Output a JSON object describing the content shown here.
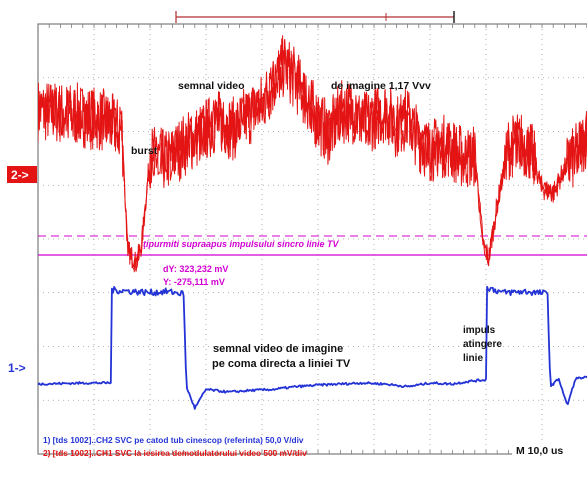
{
  "colors": {
    "ch1": "#e41414",
    "ch2": "#2433d6",
    "cursor": "#d200d2",
    "grid": "#9a9a9a",
    "frame": "#7c7c7c",
    "background": "#ffffff"
  },
  "chart_data": {
    "type": "line",
    "grid": true,
    "grid_divisions": {
      "x": 10,
      "y": 8
    },
    "channel_markers": {
      "ch1": "2->",
      "ch2": "1->"
    },
    "series": [
      {
        "name": "CH1",
        "x": [
          0,
          0.8,
          1.2,
          1.5,
          1.6,
          1.75,
          1.85,
          2.0,
          2.3,
          2.6,
          2.9,
          3.2,
          3.5,
          3.8,
          4.0,
          4.2,
          4.4,
          4.6,
          4.8,
          5.0,
          5.2,
          5.4,
          5.6,
          5.8,
          6.0,
          6.2,
          6.4,
          6.6,
          6.8,
          7.0,
          7.3,
          7.6,
          7.8,
          7.95,
          8.05,
          8.2,
          8.4,
          8.6,
          8.8,
          9.0,
          9.2,
          9.4,
          9.6,
          9.8,
          10.0
        ],
        "y": [
          1.95,
          1.85,
          1.75,
          1.55,
          -0.65,
          -0.9,
          -0.55,
          1.1,
          1.0,
          1.3,
          1.5,
          1.75,
          1.6,
          1.9,
          2.05,
          2.45,
          2.8,
          2.5,
          2.15,
          1.75,
          1.5,
          1.9,
          1.95,
          1.7,
          1.8,
          1.95,
          1.65,
          1.8,
          1.4,
          1.2,
          1.3,
          1.05,
          1.1,
          -0.55,
          -0.8,
          0.2,
          1.25,
          1.35,
          1.2,
          0.5,
          0.4,
          0.85,
          1.1,
          1.5,
          1.4
        ]
      },
      {
        "name": "CH2",
        "x": [
          0,
          0.9,
          1.3,
          1.32,
          2.0,
          2.3,
          2.6,
          2.65,
          2.8,
          3.0,
          3.4,
          3.8,
          4.2,
          4.6,
          5.0,
          5.4,
          5.8,
          6.2,
          6.6,
          7.0,
          7.4,
          7.7,
          8.0,
          8.02,
          8.3,
          8.7,
          9.1,
          9.15,
          9.3,
          9.45,
          9.6,
          10.0
        ],
        "y": [
          0.0,
          0.02,
          0.02,
          1.75,
          1.7,
          1.72,
          1.68,
          -0.05,
          -0.45,
          -0.1,
          -0.15,
          -0.12,
          -0.1,
          -0.05,
          -0.02,
          0.0,
          0.02,
          0.0,
          -0.05,
          0.02,
          0.0,
          0.05,
          0.08,
          1.8,
          1.7,
          1.72,
          1.68,
          -0.05,
          0.1,
          -0.4,
          0.1,
          0.15
        ]
      }
    ],
    "cursor_line": {
      "label": "ţipurmiti supraapus impulsului sincro linie TV"
    },
    "cursor_readout": [
      "dY: 323,232 mV",
      "Y: -275,111 mV"
    ],
    "annotations": [
      {
        "text": "semnal video",
        "series": "CH1"
      },
      {
        "text": "de imagine 1,17 Vvv",
        "series": "CH1"
      },
      {
        "text": "burst",
        "series": "CH1"
      },
      {
        "text": "semnal video de imagine",
        "series": "CH2"
      },
      {
        "text": "pe coma directa a liniei TV",
        "series": "CH2"
      },
      {
        "text": "impuls",
        "series": "CH2"
      },
      {
        "text": "atingere",
        "series": "CH2"
      },
      {
        "text": "linie",
        "series": "CH2"
      }
    ],
    "legend": [
      {
        "text": "1) [tds 1002]..CH2 SVC pe catod tub cinescop (referinta) 50,0 V/div",
        "series": "CH2"
      },
      {
        "text": "2) [tds 1002]..CH1 SVC la iesirea demodulatorului video 500 mV/div",
        "series": "CH1"
      }
    ],
    "timebase": "M 10,0 us",
    "legend_position": "bottom-left"
  }
}
